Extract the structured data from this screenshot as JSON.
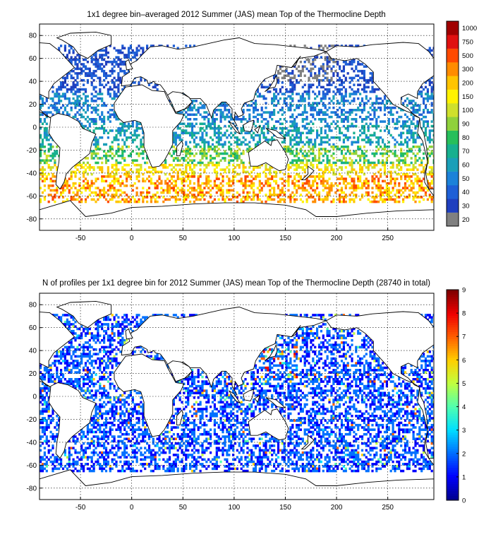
{
  "panels": [
    {
      "id": "mean-depth",
      "title": "1x1 degree bin–averaged 2012 Summer (JAS) mean Top of the Thermocline Depth",
      "colorbar_labels": [
        "20",
        "30",
        "40",
        "50",
        "60",
        "70",
        "80",
        "90",
        "100",
        "150",
        "200",
        "300",
        "500",
        "750",
        "1000"
      ],
      "colorbar_colors": [
        "#808080",
        "#1f3fbf",
        "#1e5fd6",
        "#1c82d9",
        "#1a9fb8",
        "#17b08f",
        "#27bf5b",
        "#8fd13b",
        "#cfe02c",
        "#fff200",
        "#ffc400",
        "#ff8c00",
        "#ff4a00",
        "#e01010",
        "#a00000"
      ]
    },
    {
      "id": "profile-count",
      "title": "N of profiles per 1x1 degree bin for 2012 Summer (JAS) mean Top of the Thermocline Depth  (28740 in total)",
      "colorbar_labels": [
        "0",
        "1",
        "2",
        "3",
        "4",
        "5",
        "6",
        "7",
        "8",
        "9"
      ],
      "colorbar_colors": [
        "#00008f",
        "#0000ff",
        "#0070ff",
        "#00dfff",
        "#50ffaf",
        "#bfff40",
        "#ffcf00",
        "#ff6000",
        "#ef0000",
        "#800000"
      ]
    }
  ],
  "axes": {
    "xticks": [
      "-50",
      "0",
      "50",
      "100",
      "150",
      "200",
      "250"
    ],
    "yticks": [
      "80",
      "60",
      "40",
      "20",
      "0",
      "-20",
      "-40",
      "-60",
      "-80"
    ]
  },
  "chart_data": [
    {
      "type": "heatmap",
      "title": "1x1 degree bin–averaged 2012 Summer (JAS) mean Top of the Thermocline Depth",
      "xlim": [
        -90,
        295
      ],
      "ylim": [
        -90,
        90
      ],
      "x_ticks": [
        -50,
        0,
        50,
        100,
        150,
        200,
        250
      ],
      "y_ticks": [
        -80,
        -60,
        -40,
        -20,
        0,
        20,
        40,
        60,
        80
      ],
      "grid": true,
      "colorbar": {
        "levels": [
          20,
          30,
          40,
          50,
          60,
          70,
          80,
          90,
          100,
          150,
          200,
          300,
          500,
          750,
          1000
        ],
        "placement": "right"
      },
      "regions": [
        {
          "lat_range": [
            30,
            90
          ],
          "value_range": [
            20,
            40
          ]
        },
        {
          "lat_range": [
            0,
            30
          ],
          "value_range": [
            40,
            70
          ]
        },
        {
          "lat_range": [
            -30,
            0
          ],
          "value_range": [
            60,
            100
          ]
        },
        {
          "lat_range": [
            -65,
            -30
          ],
          "value_range": [
            150,
            500
          ]
        },
        {
          "lat_range": [
            40,
            70
          ],
          "lon_range": [
            140,
            200
          ],
          "value_range": [
            20,
            20
          ]
        }
      ]
    },
    {
      "type": "heatmap",
      "title": "N of profiles per 1x1 degree bin for 2012 Summer (JAS) mean Top of the Thermocline Depth  (28740 in total)",
      "xlim": [
        -90,
        295
      ],
      "ylim": [
        -90,
        90
      ],
      "x_ticks": [
        -50,
        0,
        50,
        100,
        150,
        200,
        250
      ],
      "y_ticks": [
        -80,
        -60,
        -40,
        -20,
        0,
        20,
        40,
        60,
        80
      ],
      "grid": true,
      "total_profiles": 28740,
      "colorbar": {
        "range": [
          0,
          9
        ],
        "placement": "right"
      },
      "regions": [
        {
          "lat_range": [
            -65,
            70
          ],
          "value_range": [
            1,
            2
          ]
        },
        {
          "lat_range": [
            10,
            45
          ],
          "lon_range": [
            120,
            160
          ],
          "value_range": [
            3,
            9
          ]
        }
      ]
    }
  ]
}
